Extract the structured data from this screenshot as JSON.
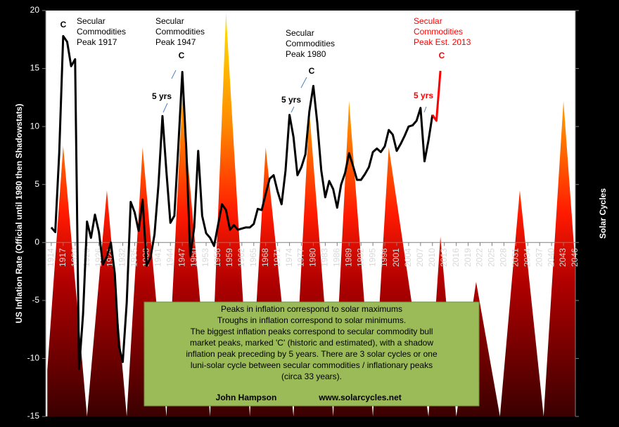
{
  "chart_data": {
    "type": "line",
    "ylabel": "US Inflation Rate (Official until 1980 then Shadowstats)",
    "y2label": "Solar Cycles",
    "xlim": [
      1912.6,
      2046
    ],
    "ylim": [
      -15,
      20
    ],
    "yticks": [
      -15,
      -10,
      -5,
      0,
      5,
      10,
      15,
      20
    ],
    "xticks": [
      1914,
      1917,
      1920,
      1923,
      1926,
      1929,
      1932,
      1935,
      1938,
      1941,
      1944,
      1947,
      1950,
      1953,
      1956,
      1959,
      1962,
      1965,
      1968,
      1971,
      1974,
      1977,
      1980,
      1983,
      1986,
      1989,
      1992,
      1995,
      1998,
      2001,
      2004,
      2007,
      2010,
      2013,
      2016,
      2019,
      2022,
      2025,
      2028,
      2031,
      2034,
      2037,
      2040,
      2043,
      2046
    ],
    "series": [
      {
        "type": "area",
        "color": "#ff2000",
        "x": [
          1913,
          1917,
          1923,
          1928,
          1933,
          1937,
          1943,
          1947,
          1954,
          1958,
          1964,
          1968,
          1975,
          1979,
          1985,
          1989,
          1995,
          1999,
          2009,
          2012,
          2016,
          2021,
          2027,
          2032,
          2038,
          2043,
          2046
        ],
        "values": [
          -11,
          8.3,
          -15,
          4.5,
          -15,
          8.2,
          -15,
          12.5,
          -15,
          19.8,
          -15,
          8.2,
          -15,
          11.3,
          -15,
          12.2,
          -15,
          8.2,
          -15,
          0.5,
          -15,
          -3.4,
          -15,
          4.5,
          -15,
          12.2,
          -2
        ]
      },
      {
        "type": "line",
        "color": "#000000",
        "x": [
          1914,
          1915,
          1916,
          1917,
          1918,
          1919,
          1920,
          1921,
          1922,
          1923,
          1924,
          1925,
          1926,
          1927,
          1928,
          1929,
          1930,
          1931,
          1932,
          1933,
          1934,
          1935,
          1936,
          1937,
          1938,
          1939,
          1940,
          1941,
          1942,
          1943,
          1944,
          1945,
          1946,
          1947,
          1948,
          1949,
          1950,
          1951,
          1952,
          1953,
          1954,
          1955,
          1956,
          1957,
          1958,
          1959,
          1960,
          1961,
          1962,
          1963,
          1964,
          1965,
          1966,
          1967,
          1968,
          1969,
          1970,
          1971,
          1972,
          1973,
          1974,
          1975,
          1976,
          1977,
          1978,
          1979,
          1980,
          1981,
          1982,
          1983,
          1984,
          1985,
          1986,
          1987,
          1988,
          1989,
          1990,
          1991,
          1992,
          1993,
          1994,
          1995,
          1996,
          1997,
          1998,
          1999,
          2000,
          2001,
          2002,
          2003,
          2004,
          2005,
          2006,
          2007,
          2008,
          2009,
          2010
        ],
        "values": [
          1.3,
          0.9,
          7.7,
          17.8,
          17.3,
          15.2,
          15.8,
          -10.9,
          -6.2,
          1.8,
          0.4,
          2.4,
          0.9,
          -1.9,
          -1.2,
          0,
          -2.7,
          -8.9,
          -10.3,
          -5.2,
          3.5,
          2.6,
          1.0,
          3.7,
          -2.0,
          -1.3,
          0.7,
          5.0,
          10.9,
          6.1,
          1.7,
          2.3,
          8.3,
          14.7,
          8.1,
          -1.2,
          1.3,
          7.9,
          2.3,
          0.8,
          0.4,
          -0.3,
          1.5,
          3.3,
          2.8,
          1.1,
          1.5,
          1.1,
          1.2,
          1.3,
          1.3,
          1.6,
          2.9,
          2.8,
          4.2,
          5.5,
          5.8,
          4.4,
          3.3,
          6.2,
          11.0,
          9.1,
          5.8,
          6.5,
          7.6,
          11.3,
          13.5,
          10.3,
          6.2,
          3.9,
          5.3,
          4.6,
          3.0,
          5.0,
          6.0,
          7.7,
          6.6,
          5.4,
          5.4,
          5.9,
          6.5,
          7.8,
          8.1,
          7.8,
          8.3,
          9.7,
          9.3,
          7.9,
          8.5,
          9.2,
          10.0,
          10.1,
          10.5,
          11.6,
          7.0,
          8.8,
          11.0
        ]
      },
      {
        "type": "line",
        "color": "#ff0000",
        "x": [
          2010,
          2011,
          2012
        ],
        "values": [
          11.0,
          10.5,
          14.8
        ]
      }
    ],
    "annotations": [
      {
        "lines": [
          "C"
        ],
        "color": "#000000",
        "bold": true
      },
      {
        "lines": [
          "C"
        ],
        "color": "#000000",
        "bold": true
      },
      {
        "lines": [
          "C"
        ],
        "color": "#000000",
        "bold": true
      },
      {
        "lines": [
          "C"
        ],
        "color": "#ff0000",
        "bold": true
      },
      {
        "lines": [
          "Secular",
          "Commodities",
          "Peak 1917"
        ],
        "color": "#000000",
        "bold": false
      },
      {
        "lines": [
          "Secular",
          "Commodities",
          "Peak 1947"
        ],
        "color": "#000000",
        "bold": false
      },
      {
        "lines": [
          "Secular",
          "Commodities",
          "Peak 1980"
        ],
        "color": "#000000",
        "bold": false
      },
      {
        "lines": [
          "Secular",
          "Commodities",
          "Peak Est. 2013"
        ],
        "color": "#ff0000",
        "bold": false
      },
      {
        "lines": [
          "5 yrs"
        ],
        "color": "#000000",
        "bold": true
      },
      {
        "lines": [
          "5 yrs"
        ],
        "color": "#000000",
        "bold": true
      },
      {
        "lines": [
          "5 yrs"
        ],
        "color": "#ff0000",
        "bold": true
      }
    ],
    "note": {
      "lines": [
        "Peaks in inflation correspond to solar maximums",
        "Troughs in inflation correspond to solar minimums.",
        "The biggest inflation peaks  correspond to secular commodity bull",
        "market peaks, marked 'C' (historic and estimated), with a shadow",
        "inflation peak preceding by 5 years. There are 3 solar cycles or one",
        "luni-solar cycle between secular commodities / inflationary peaks",
        "(circa 33 years)."
      ],
      "author": "John Hampson",
      "url": "www.solarcycles.net"
    }
  }
}
